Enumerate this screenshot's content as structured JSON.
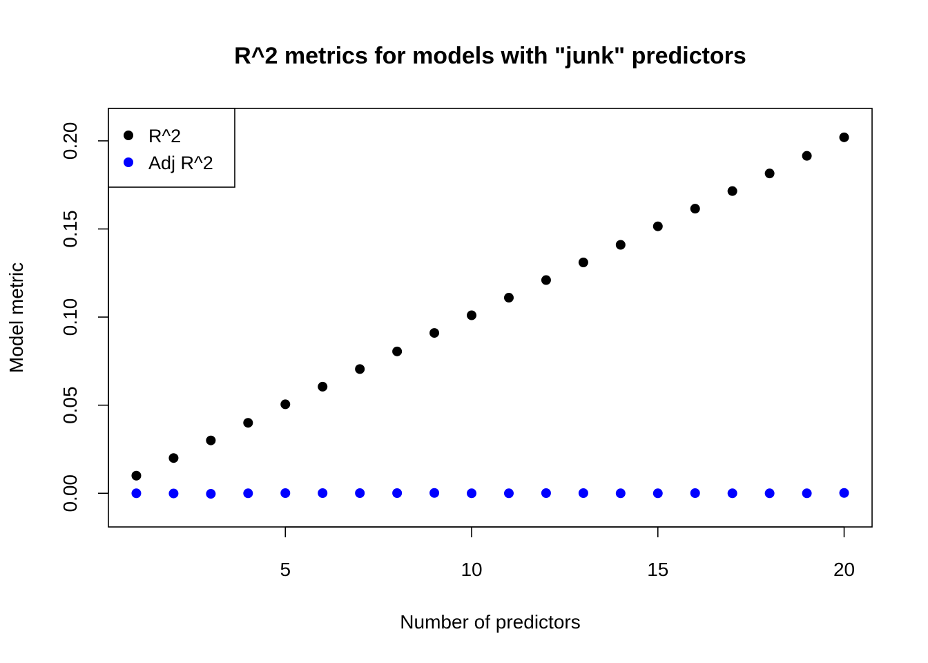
{
  "chart_data": {
    "type": "scatter",
    "title": "R^2 metrics for models with \"junk\" predictors",
    "xlabel": "Number of predictors",
    "ylabel": "Model metric",
    "xlim": [
      0.25,
      20.75
    ],
    "ylim": [
      -0.0191,
      0.2184
    ],
    "xticks": [
      5,
      10,
      15,
      20
    ],
    "xtick_labels": [
      "5",
      "10",
      "15",
      "20"
    ],
    "yticks": [
      0.0,
      0.05,
      0.1,
      0.15,
      0.2
    ],
    "ytick_labels": [
      "0.00",
      "0.05",
      "0.10",
      "0.15",
      "0.20"
    ],
    "grid": false,
    "legend_position": "top-left",
    "series": [
      {
        "name": "R^2",
        "color": "#000000",
        "x": [
          1,
          2,
          3,
          4,
          5,
          6,
          7,
          8,
          9,
          10,
          11,
          12,
          13,
          14,
          15,
          16,
          17,
          18,
          19,
          20
        ],
        "y": [
          0.01,
          0.02,
          0.03,
          0.04,
          0.0505,
          0.0605,
          0.0705,
          0.0805,
          0.091,
          0.101,
          0.111,
          0.121,
          0.131,
          0.141,
          0.1515,
          0.1615,
          0.1715,
          0.1815,
          0.1915,
          0.202
        ]
      },
      {
        "name": "Adj R^2",
        "color": "#0000FF",
        "x": [
          1,
          2,
          3,
          4,
          5,
          6,
          7,
          8,
          9,
          10,
          11,
          12,
          13,
          14,
          15,
          16,
          17,
          18,
          19,
          20
        ],
        "y": [
          0,
          -0.0001,
          -0.0003,
          0,
          0.0001,
          0.0001,
          0.0001,
          0.0001,
          0.0002,
          0,
          0,
          0.0001,
          0.0001,
          0,
          0,
          0.0001,
          0,
          0,
          0,
          0.0002
        ]
      }
    ]
  }
}
